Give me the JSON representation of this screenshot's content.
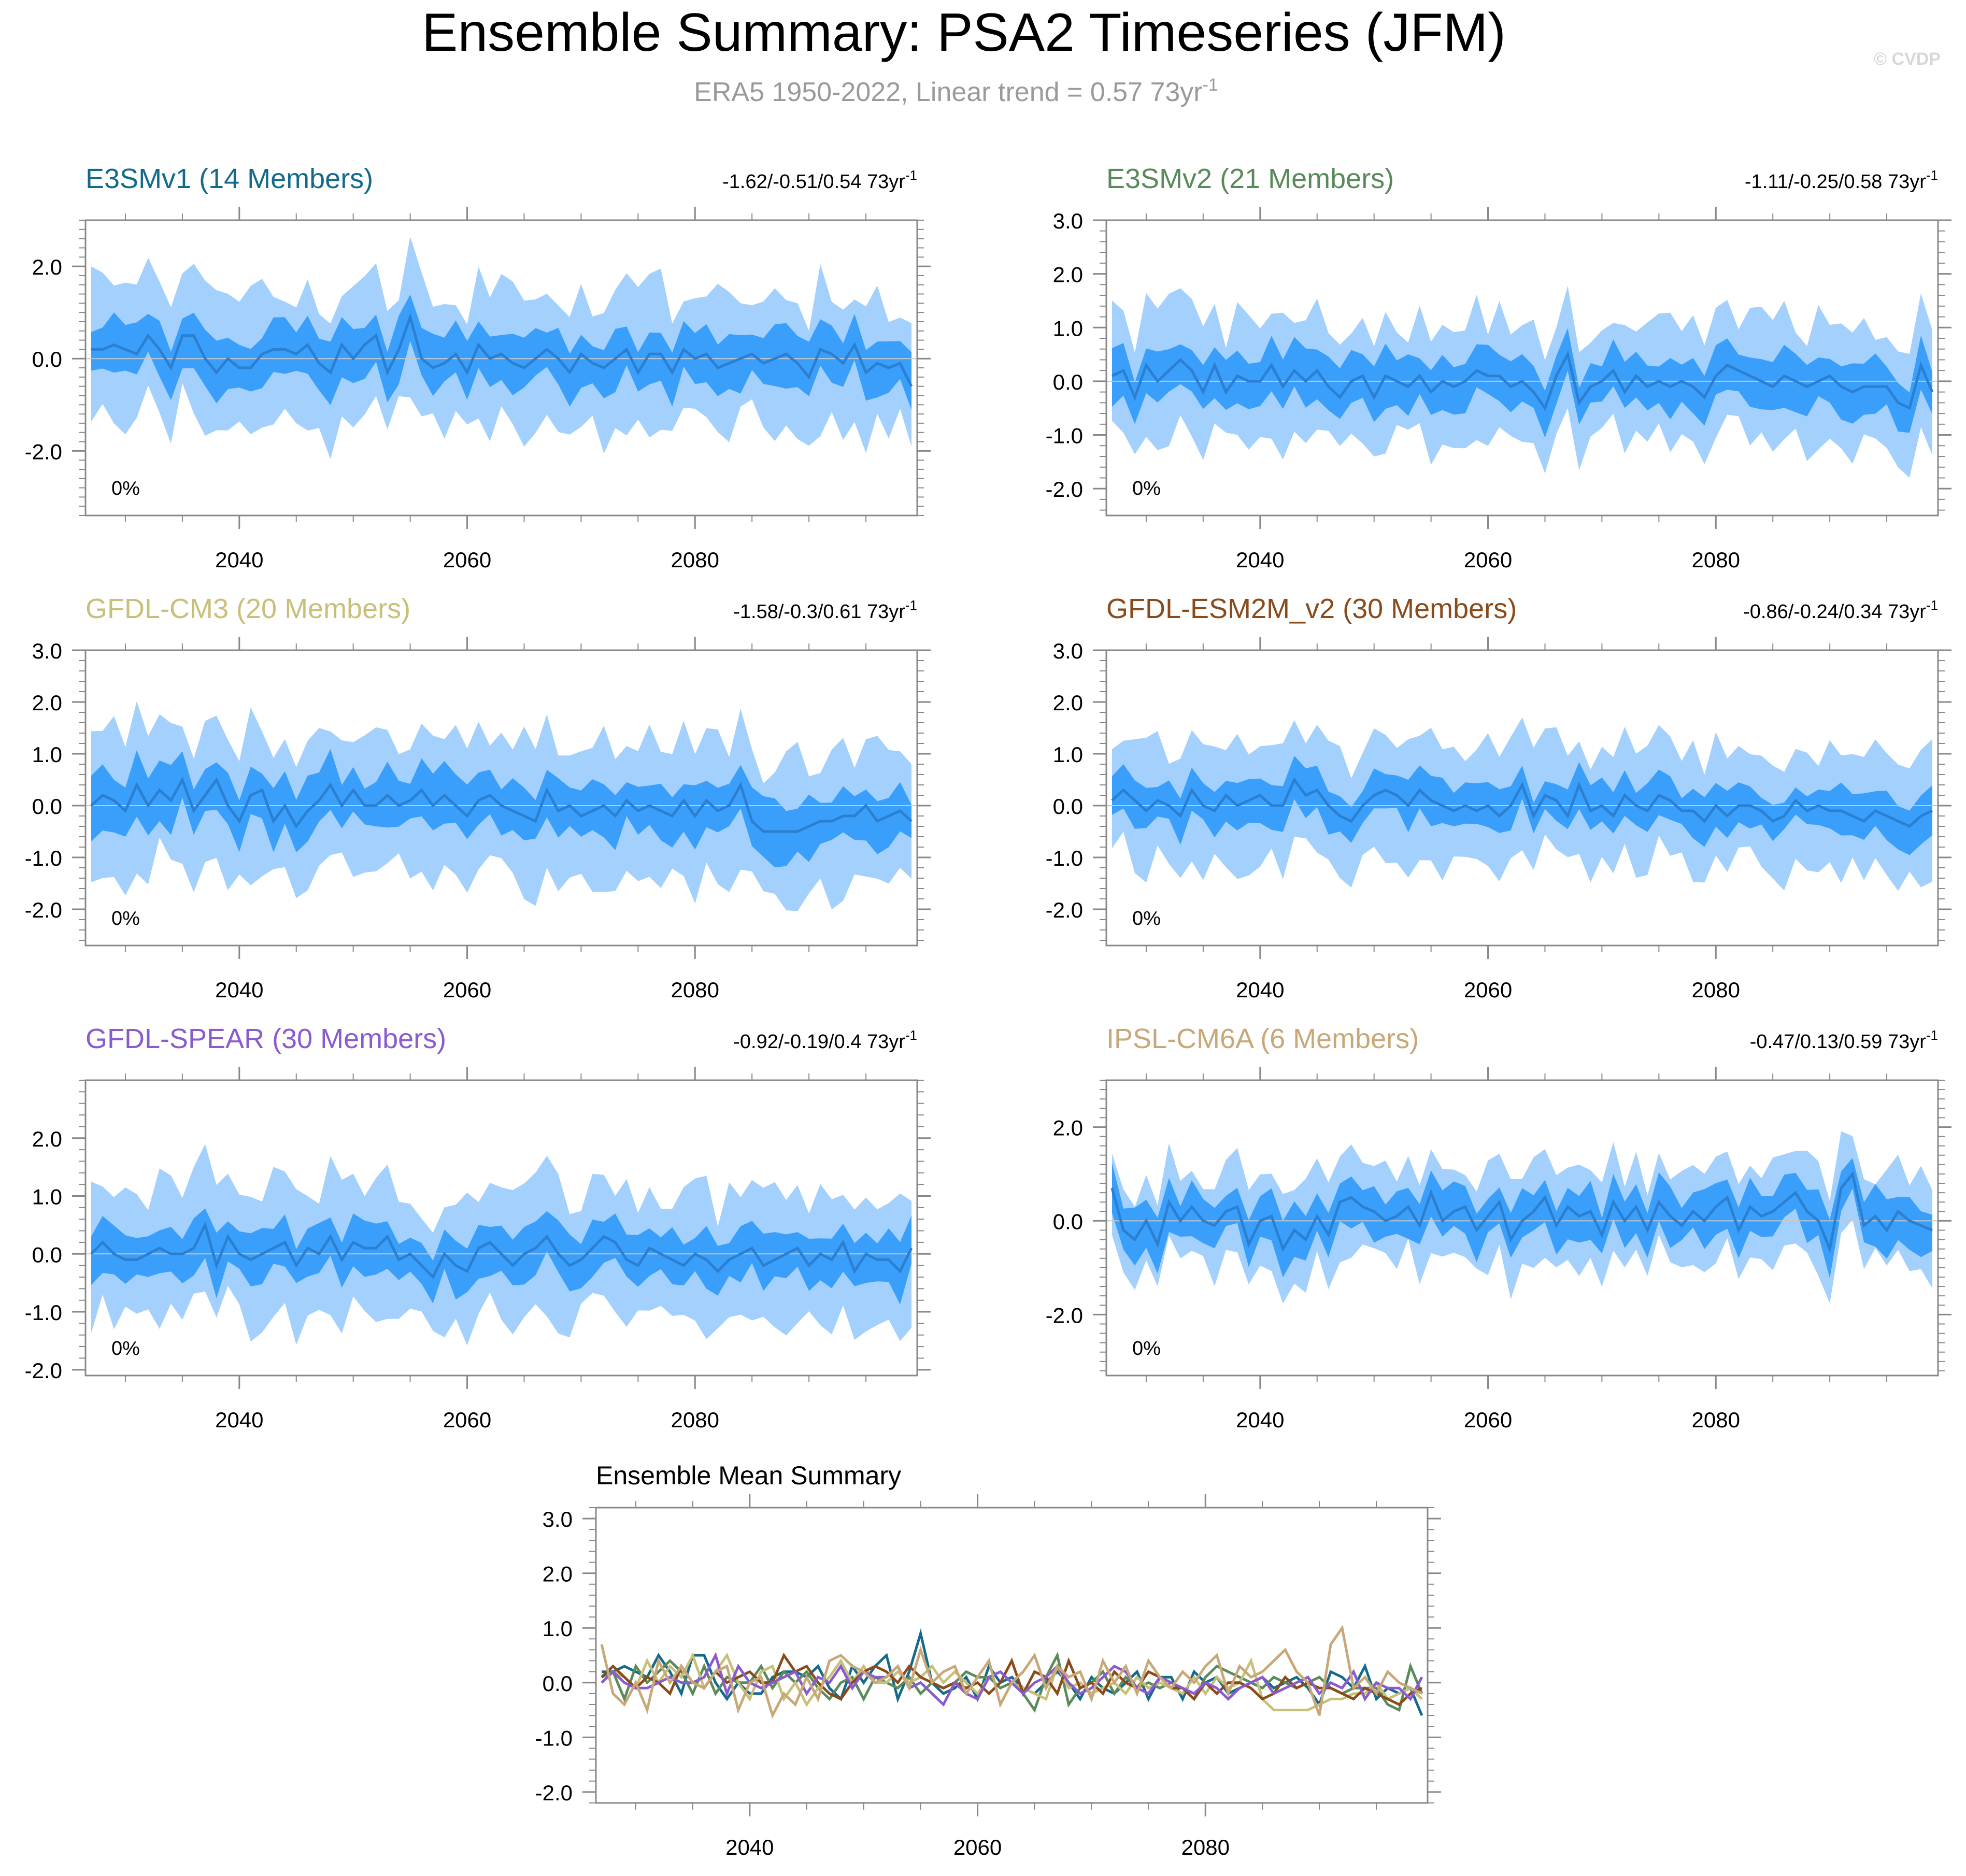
{
  "page": {
    "title": "Ensemble Summary: PSA2 Timeseries (JFM)",
    "subtitle": "ERA5 1950-2022, Linear trend = 0.57 73yr",
    "subtitle_sup": "-1",
    "watermark": "© CVDP"
  },
  "colors": {
    "band_outer": "#a3d0fd",
    "band_inner": "#3a9efb",
    "median_line": "#2a7fd0",
    "axis": "#888888",
    "zero_line": "#c8c8c8"
  },
  "chart_data": [
    {
      "type": "area",
      "name": "E3SMv1",
      "title": "E3SMv1 (14 Members)",
      "title_color": "#146a8a",
      "trend_label": "-1.62/-0.51/0.54 73yr",
      "trend_sup": "-1",
      "pct_label": "0%",
      "x_start": 2027,
      "xlim": [
        2026.5,
        2099.5
      ],
      "ylim": [
        -3.4,
        3.0
      ],
      "yticks": [
        -2,
        0,
        2
      ],
      "ytick_labels": [
        "-2.0",
        "0.0",
        "2.0"
      ],
      "xticks": [
        2040,
        2060,
        2080
      ],
      "xtick_labels": [
        "2040",
        "2060",
        "2080"
      ],
      "seed": 11,
      "outer": 1.3,
      "inner": 0.55,
      "offset": 0.0,
      "mean": [
        0.2,
        0.2,
        0.3,
        0.2,
        0.1,
        0.5,
        0.2,
        -0.2,
        0.5,
        0.5,
        0.0,
        -0.3,
        0.0,
        -0.2,
        -0.2,
        0.1,
        0.2,
        0.2,
        0.1,
        0.3,
        -0.1,
        -0.3,
        0.3,
        0.0,
        0.3,
        0.5,
        -0.3,
        0.2,
        0.9,
        0.0,
        -0.2,
        -0.1,
        0.1,
        -0.3,
        0.3,
        0.0,
        0.1,
        -0.1,
        -0.2,
        0.0,
        0.2,
        0.0,
        -0.3,
        0.1,
        -0.1,
        -0.2,
        0.0,
        0.2,
        -0.3,
        0.1,
        0.1,
        -0.3,
        0.2,
        0.0,
        0.1,
        -0.2,
        -0.1,
        0.0,
        0.1,
        -0.1,
        0.0,
        0.1,
        -0.1,
        -0.4,
        0.2,
        0.1,
        -0.1,
        0.3,
        -0.3,
        -0.1,
        -0.2,
        -0.1,
        -0.6
      ]
    },
    {
      "type": "area",
      "name": "E3SMv2",
      "title": "E3SMv2 (21 Members)",
      "title_color": "#5a8a5a",
      "trend_label": "-1.11/-0.25/0.58 73yr",
      "trend_sup": "-1",
      "pct_label": "0%",
      "x_start": 2027,
      "xlim": [
        2026.5,
        2099.5
      ],
      "ylim": [
        -2.5,
        3.0
      ],
      "yticks": [
        -2,
        -1,
        0,
        1,
        2,
        3
      ],
      "ytick_labels": [
        "-2.0",
        "-1.0",
        "0.0",
        "1.0",
        "2.0",
        "3.0"
      ],
      "xticks": [
        2040,
        2060,
        2080
      ],
      "xtick_labels": [
        "2040",
        "2060",
        "2080"
      ],
      "seed": 23,
      "outer": 1.0,
      "inner": 0.45,
      "offset": -0.05,
      "mean": [
        0.1,
        0.2,
        -0.3,
        0.3,
        0.0,
        0.2,
        0.4,
        0.2,
        -0.2,
        0.3,
        -0.2,
        0.1,
        0.0,
        0.0,
        0.3,
        -0.1,
        0.2,
        0.0,
        0.2,
        -0.1,
        -0.3,
        0.0,
        0.1,
        -0.3,
        0.1,
        0.0,
        -0.1,
        0.1,
        -0.2,
        0.0,
        -0.1,
        0.0,
        0.2,
        0.1,
        0.1,
        -0.1,
        0.0,
        -0.2,
        -0.5,
        0.1,
        0.5,
        -0.4,
        -0.1,
        0.0,
        0.2,
        -0.2,
        0.1,
        -0.1,
        0.0,
        -0.1,
        0.0,
        -0.1,
        -0.3,
        0.1,
        0.3,
        0.2,
        0.1,
        0.0,
        -0.1,
        0.1,
        0.0,
        -0.1,
        0.0,
        0.1,
        -0.1,
        -0.2,
        -0.1,
        -0.1,
        -0.1,
        -0.4,
        -0.5,
        0.3,
        -0.2
      ]
    },
    {
      "type": "area",
      "name": "GFDL-CM3",
      "title": "GFDL-CM3 (20 Members)",
      "title_color": "#c8c078",
      "trend_label": "-1.58/-0.3/0.61 73yr",
      "trend_sup": "-1",
      "pct_label": "0%",
      "x_start": 2027,
      "xlim": [
        2026.5,
        2099.5
      ],
      "ylim": [
        -2.7,
        3.0
      ],
      "yticks": [
        -2,
        -1,
        0,
        1,
        2,
        3
      ],
      "ytick_labels": [
        "-2.0",
        "-1.0",
        "0.0",
        "1.0",
        "2.0",
        "3.0"
      ],
      "xticks": [
        2040,
        2060,
        2080
      ],
      "xtick_labels": [
        "2040",
        "2060",
        "2080"
      ],
      "seed": 37,
      "outer": 1.2,
      "inner": 0.5,
      "offset": 0.0,
      "mean": [
        0.0,
        0.2,
        0.1,
        -0.1,
        0.4,
        0.0,
        0.3,
        0.1,
        0.5,
        -0.1,
        0.2,
        0.5,
        0.0,
        -0.3,
        0.2,
        0.3,
        -0.3,
        0.0,
        -0.4,
        -0.1,
        0.1,
        0.4,
        0.0,
        0.3,
        0.0,
        0.0,
        0.2,
        0.0,
        0.1,
        0.3,
        0.0,
        0.2,
        0.0,
        -0.2,
        0.1,
        0.2,
        0.0,
        -0.1,
        -0.2,
        -0.3,
        0.3,
        -0.1,
        0.0,
        -0.2,
        -0.1,
        0.0,
        -0.2,
        0.1,
        -0.1,
        0.0,
        -0.1,
        -0.2,
        0.1,
        -0.2,
        0.1,
        -0.1,
        0.0,
        0.4,
        -0.3,
        -0.5,
        -0.5,
        -0.5,
        -0.5,
        -0.4,
        -0.3,
        -0.3,
        -0.2,
        -0.2,
        0.0,
        -0.3,
        -0.2,
        -0.1,
        -0.3
      ]
    },
    {
      "type": "area",
      "name": "GFDL-ESM2M_v2",
      "title": "GFDL-ESM2M_v2 (30 Members)",
      "title_color": "#8a4a1a",
      "trend_label": "-0.86/-0.24/0.34 73yr",
      "trend_sup": "-1",
      "pct_label": "0%",
      "x_start": 2027,
      "xlim": [
        2026.5,
        2099.5
      ],
      "ylim": [
        -2.7,
        3.0
      ],
      "yticks": [
        -2,
        -1,
        0,
        1,
        2,
        3
      ],
      "ytick_labels": [
        "-2.0",
        "-1.0",
        "0.0",
        "1.0",
        "2.0",
        "3.0"
      ],
      "xticks": [
        2040,
        2060,
        2080
      ],
      "xtick_labels": [
        "2040",
        "2060",
        "2080"
      ],
      "seed": 51,
      "outer": 1.0,
      "inner": 0.4,
      "offset": 0.0,
      "mean": [
        0.1,
        0.3,
        0.1,
        -0.1,
        0.1,
        0.0,
        -0.2,
        0.3,
        0.0,
        -0.1,
        0.2,
        0.0,
        0.1,
        0.2,
        0.0,
        0.0,
        0.5,
        0.2,
        0.3,
        0.0,
        -0.2,
        -0.3,
        0.0,
        0.2,
        0.3,
        0.2,
        0.0,
        0.3,
        0.1,
        0.0,
        -0.1,
        0.0,
        -0.1,
        0.0,
        -0.2,
        0.0,
        0.4,
        -0.2,
        0.2,
        0.1,
        -0.2,
        0.4,
        -0.1,
        0.0,
        -0.2,
        0.2,
        0.0,
        -0.1,
        0.2,
        0.1,
        -0.1,
        -0.1,
        -0.3,
        0.0,
        -0.2,
        0.0,
        0.0,
        -0.1,
        -0.3,
        -0.2,
        0.1,
        -0.1,
        0.0,
        -0.1,
        -0.1,
        -0.2,
        -0.3,
        -0.1,
        -0.2,
        -0.3,
        -0.4,
        -0.2,
        -0.1
      ]
    },
    {
      "type": "area",
      "name": "GFDL-SPEAR",
      "title": "GFDL-SPEAR (30 Members)",
      "title_color": "#8a5ad0",
      "trend_label": "-0.92/-0.19/0.4 73yr",
      "trend_sup": "-1",
      "pct_label": "0%",
      "x_start": 2027,
      "xlim": [
        2026.5,
        2099.5
      ],
      "ylim": [
        -2.1,
        3.0
      ],
      "yticks": [
        -2,
        -1,
        0,
        1,
        2
      ],
      "ytick_labels": [
        "-2.0",
        "-1.0",
        "0.0",
        "1.0",
        "2.0"
      ],
      "xticks": [
        2040,
        2060,
        2080
      ],
      "xtick_labels": [
        "2040",
        "2060",
        "2080"
      ],
      "seed": 67,
      "outer": 1.0,
      "inner": 0.42,
      "offset": 0.0,
      "mean": [
        0.0,
        0.2,
        0.0,
        -0.1,
        -0.1,
        0.0,
        0.1,
        0.0,
        0.0,
        0.1,
        0.5,
        -0.2,
        0.3,
        0.0,
        -0.1,
        0.0,
        0.1,
        0.2,
        -0.2,
        0.1,
        0.0,
        0.3,
        -0.1,
        0.2,
        0.1,
        0.1,
        0.3,
        -0.1,
        0.0,
        -0.2,
        -0.4,
        0.0,
        -0.2,
        -0.3,
        0.1,
        0.2,
        0.0,
        -0.2,
        0.0,
        0.1,
        0.3,
        0.0,
        -0.2,
        -0.1,
        0.1,
        0.3,
        0.2,
        -0.1,
        -0.2,
        0.1,
        0.0,
        -0.1,
        -0.2,
        0.0,
        -0.1,
        -0.3,
        -0.1,
        0.0,
        0.1,
        -0.2,
        -0.1,
        0.0,
        0.1,
        -0.2,
        0.0,
        -0.1,
        0.2,
        -0.3,
        0.0,
        -0.1,
        -0.1,
        -0.3,
        0.1
      ]
    },
    {
      "type": "area",
      "name": "IPSL-CM6A",
      "title": "IPSL-CM6A (6 Members)",
      "title_color": "#c8a878",
      "trend_label": "-0.47/0.13/0.59 73yr",
      "trend_sup": "-1",
      "pct_label": "0%",
      "x_start": 2027,
      "xlim": [
        2026.5,
        2099.5
      ],
      "ylim": [
        -3.3,
        3.0
      ],
      "yticks": [
        -2,
        0,
        2
      ],
      "ytick_labels": [
        "-2.0",
        "0.0",
        "2.0"
      ],
      "xticks": [
        2040,
        2060,
        2080
      ],
      "xtick_labels": [
        "2040",
        "2060",
        "2080"
      ],
      "seed": 83,
      "outer": 0.9,
      "inner": 0.5,
      "offset": 0.0,
      "mean": [
        0.7,
        -0.2,
        -0.4,
        0.0,
        -0.5,
        0.4,
        0.0,
        0.3,
        0.0,
        -0.1,
        0.2,
        0.3,
        -0.5,
        0.0,
        0.1,
        -0.6,
        -0.2,
        -0.4,
        0.1,
        -0.3,
        0.4,
        0.5,
        0.3,
        0.2,
        0.0,
        0.1,
        0.3,
        -0.1,
        0.6,
        0.0,
        0.2,
        0.3,
        -0.2,
        0.1,
        0.4,
        -0.4,
        0.0,
        0.2,
        0.5,
        -0.1,
        0.3,
        0.1,
        0.2,
        -0.3,
        0.4,
        0.0,
        0.3,
        -0.2,
        0.4,
        0.1,
        -0.1,
        0.2,
        0.0,
        0.3,
        0.5,
        -0.2,
        0.3,
        0.1,
        0.2,
        0.4,
        0.6,
        0.2,
        0.0,
        -0.6,
        0.7,
        1.0,
        -0.1,
        0.1,
        -0.2,
        0.2,
        0.0,
        -0.1,
        -0.2
      ]
    },
    {
      "type": "line",
      "name": "Ensemble Mean Summary",
      "title": "Ensemble Mean Summary",
      "x_start": 2027,
      "xlim": [
        2026.5,
        2099.5
      ],
      "ylim": [
        -2.2,
        3.2
      ],
      "yticks": [
        -2,
        -1,
        0,
        1,
        2,
        3
      ],
      "ytick_labels": [
        "-2.0",
        "-1.0",
        "0.0",
        "1.0",
        "2.0",
        "3.0"
      ],
      "xticks": [
        2040,
        2060,
        2080
      ],
      "xtick_labels": [
        "2040",
        "2060",
        "2080"
      ],
      "series": [
        {
          "name": "E3SMv1",
          "color": "#146a8a",
          "ref": 0
        },
        {
          "name": "E3SMv2",
          "color": "#5a8a5a",
          "ref": 1
        },
        {
          "name": "GFDL-CM3",
          "color": "#c8c078",
          "ref": 2
        },
        {
          "name": "GFDL-ESM2M_v2",
          "color": "#8a4a1a",
          "ref": 3
        },
        {
          "name": "GFDL-SPEAR",
          "color": "#8a5ad0",
          "ref": 4
        },
        {
          "name": "IPSL-CM6A",
          "color": "#c8a878",
          "ref": 5
        }
      ]
    }
  ]
}
